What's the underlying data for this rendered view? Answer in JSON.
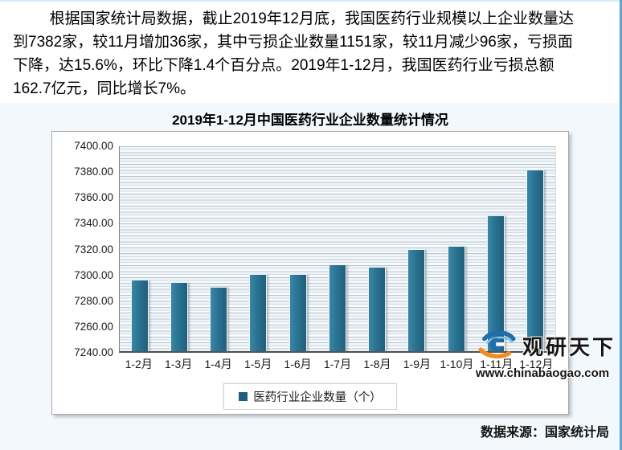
{
  "page": {
    "paragraph_lines": [
      "根据国家统计局数据，截止2019年12月底，我国医药行业规模以上企业数量达",
      "到7382家，较11月增加36家，其中亏损企业数量1151家，较11月减少96家，亏损面",
      "下降，达15.6%，环比下降1.4个百分点。2019年1-12月，我国医药行业亏损总额",
      "162.7亿元，同比增长7%。"
    ],
    "source_note": "数据来源：国家统计局"
  },
  "watermark": {
    "brand": "观研天下",
    "url": "www.chinabaogao.com",
    "logo_blue": "#1f6fae",
    "logo_light_blue": "#7fc4e8",
    "logo_orange": "#f08c21"
  },
  "chart_data": {
    "type": "bar",
    "title": "2019年1-12月中国医药行业企业数量统计情况",
    "categories": [
      "1-2月",
      "1-3月",
      "1-4月",
      "1-5月",
      "1-6月",
      "1-7月",
      "1-8月",
      "1-9月",
      "1-10月",
      "1-11月",
      "1-12月"
    ],
    "values": [
      7296,
      7294,
      7290,
      7300,
      7300,
      7308,
      7306,
      7320,
      7322,
      7346,
      7382
    ],
    "series_name": "医药行业企业数量（个）",
    "xlabel": "",
    "ylabel": "",
    "ylim": [
      7240,
      7400
    ],
    "ytick_step": 20,
    "ytick_decimals": 2,
    "grid": true,
    "legend_position": "bottom",
    "bar_color": "#2a7392",
    "legend_marker_color": "#1f5c80"
  }
}
